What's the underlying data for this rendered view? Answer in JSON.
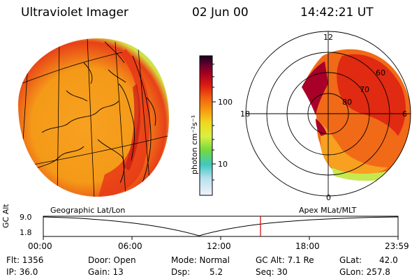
{
  "header": {
    "instrument": "Ultraviolet Imager",
    "date": "02 Jun 00",
    "time": "14:42:21 UT"
  },
  "colorbar": {
    "unit_label": "photon cm⁻²s⁻¹",
    "ticks": [
      "100",
      "10"
    ],
    "colors": [
      "#e8f0f8",
      "#b8e0ee",
      "#4dd0c8",
      "#7ee050",
      "#d8f040",
      "#f0d820",
      "#f8a010",
      "#f07010",
      "#e83010",
      "#b00020",
      "#700030",
      "#2a0020"
    ]
  },
  "left_map": {
    "label": "Geographic Lat/Lon"
  },
  "right_map": {
    "label": "Apex MLat/MLT",
    "mlt_labels": {
      "top": "12",
      "left": "18",
      "right": "6",
      "bottom": "0"
    },
    "lat_labels": [
      "60",
      "70",
      "80"
    ]
  },
  "timeline": {
    "ylabel": "GC Alt",
    "y_ticks": [
      "9.0",
      "1.8"
    ],
    "x_ticks": [
      "00:00",
      "06:00",
      "12:00",
      "18:00",
      "23:59"
    ],
    "current_time_marker": "14:42"
  },
  "info": {
    "flt": "Flt: 1356",
    "ip": "IP: 36.0",
    "door": "Door: Open",
    "gain": "Gain: 13",
    "mode": "Mode: Normal",
    "dsp": "Dsp:",
    "dsp_value": "5.2",
    "gc_alt": "GC Alt: 7.1 Re",
    "seq": "Seq: 30",
    "glat": "GLat:",
    "glat_value": "42.0",
    "glon": "GLon: 257.8"
  }
}
